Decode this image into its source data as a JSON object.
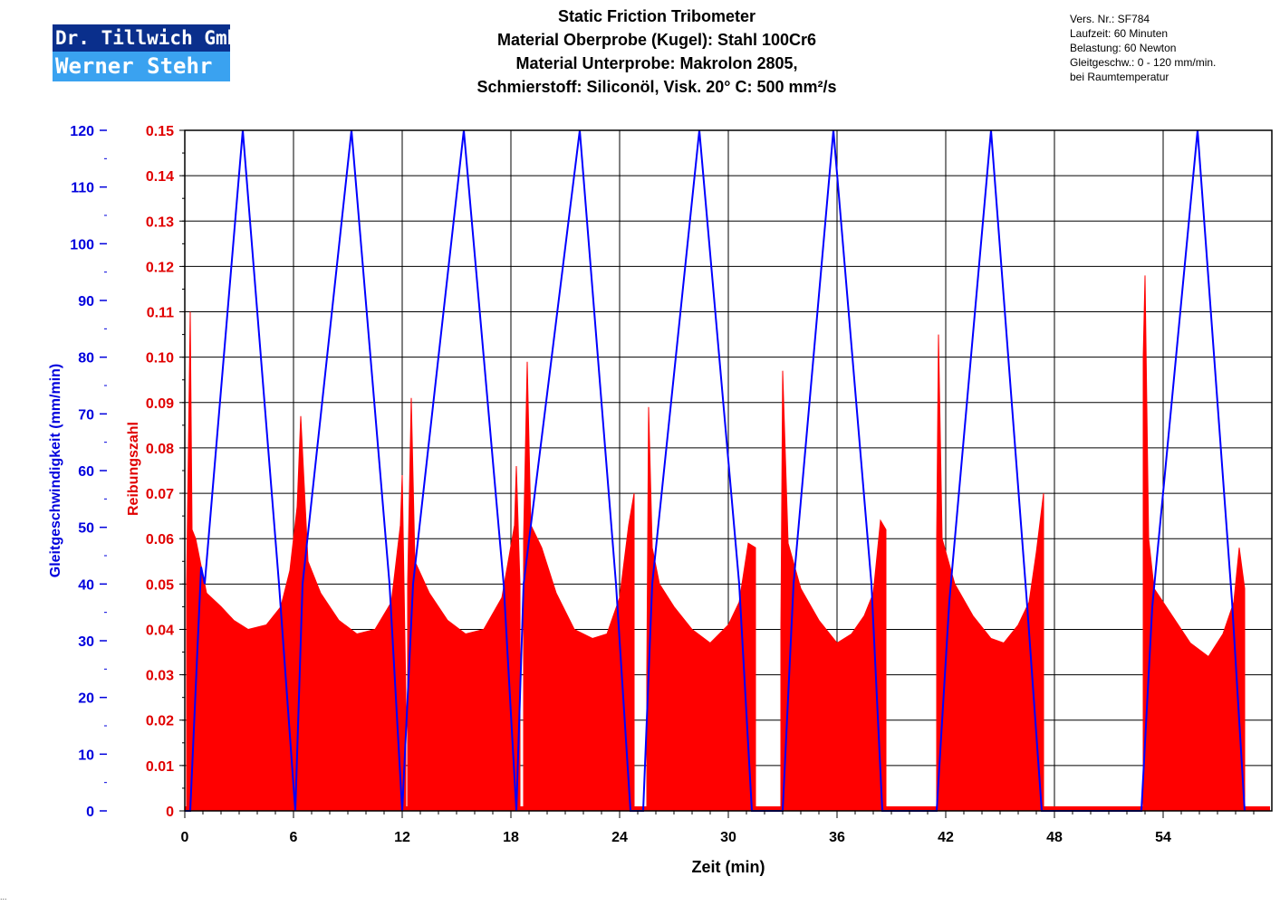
{
  "logo": {
    "line1": "Dr. Tillwich GmbH",
    "line2": "Werner Stehr"
  },
  "title_lines": [
    "Static Friction Tribometer",
    "Material Oberprobe (Kugel): Stahl 100Cr6",
    "Material Unterprobe: Makrolon 2805,",
    "Schmierstoff: Siliconöl, Visk. 20° C: 500 mm²/s"
  ],
  "info_lines": [
    "Vers. Nr.: SF784",
    "Laufzeit: 60 Minuten",
    "Belastung: 60 Newton",
    "Gleitgeschw.: 0 - 120 mm/min.",
    "bei Raumtemperatur"
  ],
  "footer_mark": "...",
  "chart_data": {
    "type": "line",
    "xlabel": "Zeit (min)",
    "ylabel_left": "Gleitgeschwindigkeit (mm/min)",
    "ylabel_right": "Reibungszahl",
    "xlim": [
      0,
      60
    ],
    "x_ticks": [
      "0",
      "6",
      "12",
      "18",
      "24",
      "30",
      "36",
      "42",
      "48",
      "54"
    ],
    "ylim_speed": [
      0,
      120
    ],
    "speed_ticks": [
      "0",
      "10",
      "20",
      "30",
      "40",
      "50",
      "60",
      "70",
      "80",
      "90",
      "100",
      "110",
      "120"
    ],
    "ylim_friction": [
      0,
      0.15
    ],
    "friction_ticks": [
      "0",
      "0.01",
      "0.02",
      "0.03",
      "0.04",
      "0.05",
      "0.06",
      "0.07",
      "0.08",
      "0.09",
      "0.10",
      "0.11",
      "0.12",
      "0.13",
      "0.14",
      "0.15"
    ],
    "grid": true,
    "colors": {
      "speed": "#0000ff",
      "friction": "#ff0000",
      "speed_axis": "#0000dd",
      "friction_axis": "#e00000"
    },
    "series": [
      {
        "label": "Gleitgeschwindigkeit",
        "axis": "left",
        "x": [
          0,
          0.3,
          0.9,
          1.1,
          3.2,
          5.2,
          6.1,
          6.5,
          9.2,
          11.3,
          12.0,
          12.6,
          15.4,
          17.6,
          18.3,
          18.7,
          21.8,
          23.8,
          24.6,
          25.3,
          25.8,
          28.4,
          30.6,
          31.3,
          33.0,
          33.6,
          35.8,
          37.9,
          38.5,
          41.5,
          42.2,
          44.5,
          46.5,
          47.3,
          52.8,
          53.4,
          55.9,
          57.8,
          58.5
        ],
        "y": [
          0,
          0,
          43,
          40,
          120,
          40,
          0,
          40,
          120,
          40,
          0,
          40,
          120,
          40,
          0,
          40,
          120,
          40,
          0,
          0,
          40,
          120,
          40,
          0,
          0,
          40,
          120,
          40,
          0,
          0,
          37,
          120,
          36,
          0,
          0,
          36,
          120,
          37,
          0
        ]
      },
      {
        "label": "Reibungszahl",
        "axis": "right",
        "cycles": [
          {
            "x": [
              0.1,
              0.3,
              0.4,
              0.6,
              1.2,
              2.0,
              2.7,
              3.5,
              4.5,
              5.3,
              5.8,
              6.2,
              6.4,
              6.8,
              7.5,
              8.5,
              9.5,
              10.5,
              11.4,
              11.9,
              12.0,
              12.2
            ],
            "y": [
              0.05,
              0.11,
              0.062,
              0.06,
              0.048,
              0.045,
              0.042,
              0.04,
              0.041,
              0.045,
              0.053,
              0.067,
              0.087,
              0.055,
              0.048,
              0.042,
              0.039,
              0.04,
              0.046,
              0.063,
              0.074,
              0.026
            ]
          },
          {
            "x": [
              12.3,
              12.5,
              12.7,
              13.5,
              14.5,
              15.5,
              16.5,
              17.5,
              18.2,
              18.3,
              18.5
            ],
            "y": [
              0.05,
              0.091,
              0.055,
              0.048,
              0.042,
              0.039,
              0.04,
              0.047,
              0.063,
              0.076,
              0.05
            ]
          },
          {
            "x": [
              18.7,
              18.9,
              19.1,
              19.7,
              20.5,
              21.5,
              22.5,
              23.3,
              24.0,
              24.5,
              24.8
            ],
            "y": [
              0.06,
              0.099,
              0.063,
              0.058,
              0.048,
              0.04,
              0.038,
              0.039,
              0.047,
              0.063,
              0.07
            ]
          },
          {
            "x": [
              25.5,
              25.6,
              25.8,
              26.2,
              27.0,
              28.0,
              29.0,
              30.0,
              30.6,
              31.1,
              31.5
            ],
            "y": [
              0.03,
              0.089,
              0.058,
              0.05,
              0.045,
              0.04,
              0.037,
              0.041,
              0.046,
              0.059,
              0.058
            ]
          },
          {
            "x": [
              32.9,
              33.0,
              33.3,
              34.0,
              35.0,
              36.0,
              36.8,
              37.5,
              38.0,
              38.4,
              38.7
            ],
            "y": [
              0.04,
              0.097,
              0.059,
              0.049,
              0.042,
              0.037,
              0.039,
              0.043,
              0.048,
              0.064,
              0.062
            ]
          },
          {
            "x": [
              41.5,
              41.6,
              41.8,
              42.5,
              43.5,
              44.5,
              45.2,
              46.0,
              46.6,
              47.0,
              47.4
            ],
            "y": [
              0.06,
              0.105,
              0.06,
              0.05,
              0.043,
              0.038,
              0.037,
              0.041,
              0.046,
              0.057,
              0.07
            ]
          },
          {
            "x": [
              52.9,
              53.0,
              53.2,
              53.5,
              54.5,
              55.5,
              56.5,
              57.3,
              57.9,
              58.2,
              58.5
            ],
            "y": [
              0.1,
              0.118,
              0.06,
              0.049,
              0.043,
              0.037,
              0.034,
              0.039,
              0.046,
              0.058,
              0.049
            ]
          }
        ]
      }
    ]
  }
}
